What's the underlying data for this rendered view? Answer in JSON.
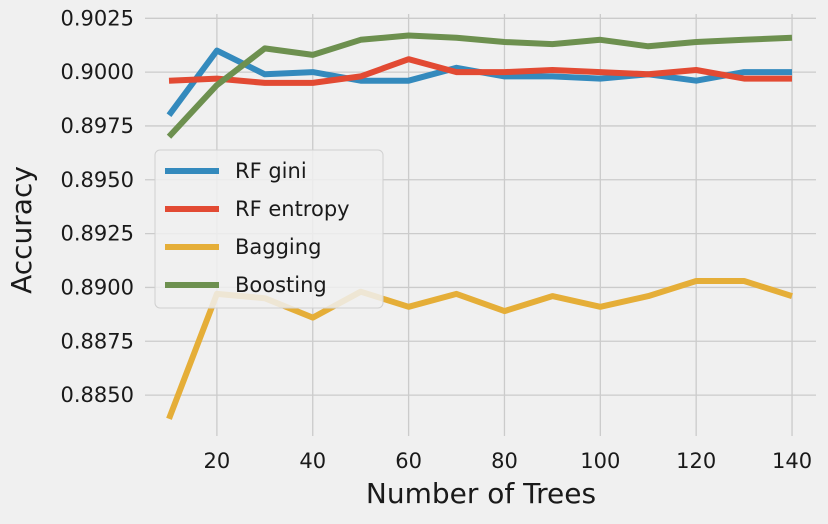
{
  "chart_data": {
    "type": "line",
    "title": "",
    "xlabel": "Number of Trees",
    "ylabel": "Accuracy",
    "x": [
      10,
      20,
      30,
      40,
      50,
      60,
      70,
      80,
      90,
      100,
      110,
      120,
      130,
      140
    ],
    "xlim": [
      5,
      145
    ],
    "ylim": [
      0.8831,
      0.9027
    ],
    "xticks": [
      20,
      40,
      60,
      80,
      100,
      120,
      140
    ],
    "yticks": [
      0.885,
      0.8875,
      0.89,
      0.8925,
      0.895,
      0.8975,
      0.9,
      0.9025
    ],
    "xtick_labels": [
      "20",
      "40",
      "60",
      "80",
      "100",
      "120",
      "140"
    ],
    "ytick_labels": [
      "0.8850",
      "0.8875",
      "0.8900",
      "0.8925",
      "0.8950",
      "0.8975",
      "0.9000",
      "0.9025"
    ],
    "grid": true,
    "legend_position": "center-left",
    "series": [
      {
        "name": "RF gini",
        "color": "#348abd",
        "values": [
          0.898,
          0.901,
          0.8999,
          0.9,
          0.8996,
          0.8996,
          0.9002,
          0.8998,
          0.8998,
          0.8997,
          0.8999,
          0.8996,
          0.9,
          0.9
        ]
      },
      {
        "name": "RF entropy",
        "color": "#e24a33",
        "values": [
          0.8996,
          0.8997,
          0.8995,
          0.8995,
          0.8998,
          0.9006,
          0.9,
          0.9,
          0.9001,
          0.9,
          0.8999,
          0.9001,
          0.8997,
          0.8997
        ]
      },
      {
        "name": "Bagging",
        "color": "#e5ae38",
        "values": [
          0.8839,
          0.8897,
          0.8895,
          0.8886,
          0.8898,
          0.8891,
          0.8897,
          0.8889,
          0.8896,
          0.8891,
          0.8896,
          0.8903,
          0.8903,
          0.8896
        ]
      },
      {
        "name": "Boosting",
        "color": "#6d904f",
        "values": [
          0.897,
          0.8994,
          0.9011,
          0.9008,
          0.9015,
          0.9017,
          0.9016,
          0.9014,
          0.9013,
          0.9015,
          0.9012,
          0.9014,
          0.9015,
          0.9016
        ]
      }
    ]
  }
}
